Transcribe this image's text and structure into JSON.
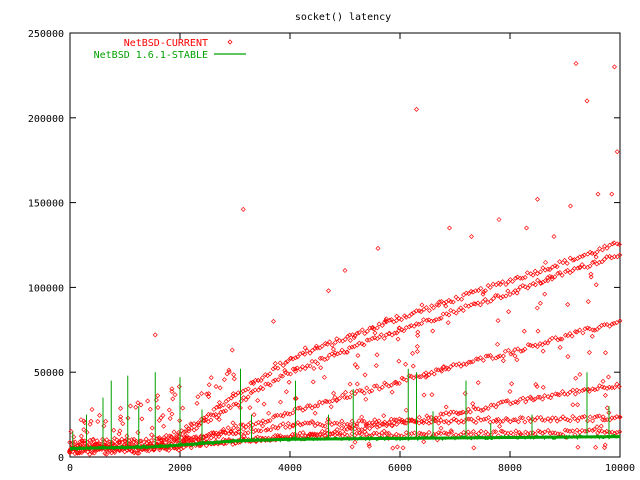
{
  "chart_data": {
    "type": "scatter",
    "title": "socket() latency",
    "xlabel": "",
    "ylabel": "",
    "xlim": [
      0,
      10000
    ],
    "ylim": [
      0,
      250000
    ],
    "x_ticks": [
      0,
      2000,
      4000,
      6000,
      8000,
      10000
    ],
    "y_ticks": [
      0,
      50000,
      100000,
      150000,
      200000,
      250000
    ],
    "grid": false,
    "legend_position": "top-left",
    "series": [
      {
        "name": "NetBSD-CURRENT",
        "style": "points",
        "color": "#ff0000",
        "trend_bands": [
          {
            "x": [
              0,
              1500,
              2000,
              4000,
              6000,
              8000,
              10000
            ],
            "y": [
              8000,
              10000,
              14000,
              58000,
              82000,
              104000,
              126000
            ]
          },
          {
            "x": [
              0,
              1500,
              2000,
              4000,
              6000,
              8000,
              10000
            ],
            "y": [
              6000,
              8000,
              12000,
              50000,
              75000,
              97000,
              120000
            ]
          },
          {
            "x": [
              0,
              1500,
              2000,
              4000,
              6000,
              8000,
              10000
            ],
            "y": [
              5000,
              6000,
              8000,
              26000,
              45000,
              62000,
              80000
            ]
          },
          {
            "x": [
              0,
              1500,
              2000,
              4000,
              6000,
              8000,
              10000
            ],
            "y": [
              4000,
              5000,
              6000,
              12000,
              20000,
              32000,
              43000
            ]
          },
          {
            "x": [
              0,
              1500,
              2000,
              4000,
              6000,
              8000,
              10000
            ],
            "y": [
              4000,
              5000,
              10000,
              19000,
              21000,
              22000,
              23000
            ]
          },
          {
            "x": [
              0,
              1500,
              2000,
              4000,
              6000,
              8000,
              10000
            ],
            "y": [
              3000,
              4000,
              7000,
              12000,
              13000,
              14000,
              15000
            ]
          }
        ],
        "outliers": [
          {
            "x": 3150,
            "y": 146000
          },
          {
            "x": 6300,
            "y": 205000
          },
          {
            "x": 9200,
            "y": 232000
          },
          {
            "x": 9900,
            "y": 230000
          },
          {
            "x": 9950,
            "y": 180000
          },
          {
            "x": 9600,
            "y": 155000
          },
          {
            "x": 9100,
            "y": 148000
          },
          {
            "x": 8500,
            "y": 152000
          },
          {
            "x": 7800,
            "y": 140000
          },
          {
            "x": 7300,
            "y": 130000
          },
          {
            "x": 6900,
            "y": 135000
          },
          {
            "x": 1550,
            "y": 72000
          },
          {
            "x": 2950,
            "y": 63000
          },
          {
            "x": 3700,
            "y": 80000
          },
          {
            "x": 5000,
            "y": 110000
          },
          {
            "x": 4700,
            "y": 98000
          },
          {
            "x": 5600,
            "y": 123000
          },
          {
            "x": 8300,
            "y": 135000
          },
          {
            "x": 9400,
            "y": 210000
          },
          {
            "x": 9850,
            "y": 155000
          },
          {
            "x": 8800,
            "y": 130000
          },
          {
            "x": 400,
            "y": 28000
          },
          {
            "x": 200,
            "y": 22000
          }
        ]
      },
      {
        "name": "NetBSD 1.6.1-STABLE",
        "style": "lines",
        "color": "#00a000",
        "baseline": {
          "x": [
            0,
            1500,
            2000,
            3000,
            4000,
            6000,
            8000,
            10000
          ],
          "y": [
            5000,
            6000,
            7000,
            9500,
            10500,
            11000,
            11500,
            12000
          ]
        },
        "spikes": [
          {
            "x": 50,
            "y": 15000
          },
          {
            "x": 300,
            "y": 25000
          },
          {
            "x": 600,
            "y": 35000
          },
          {
            "x": 750,
            "y": 45000
          },
          {
            "x": 1050,
            "y": 48000
          },
          {
            "x": 1250,
            "y": 30000
          },
          {
            "x": 1550,
            "y": 50000
          },
          {
            "x": 2000,
            "y": 47000
          },
          {
            "x": 2400,
            "y": 28000
          },
          {
            "x": 3100,
            "y": 52000
          },
          {
            "x": 3300,
            "y": 25000
          },
          {
            "x": 4100,
            "y": 45000
          },
          {
            "x": 4700,
            "y": 25000
          },
          {
            "x": 5150,
            "y": 40000
          },
          {
            "x": 6150,
            "y": 52000
          },
          {
            "x": 6300,
            "y": 50000
          },
          {
            "x": 6600,
            "y": 27000
          },
          {
            "x": 7200,
            "y": 45000
          },
          {
            "x": 7650,
            "y": 20000
          },
          {
            "x": 8400,
            "y": 25000
          },
          {
            "x": 9400,
            "y": 50000
          },
          {
            "x": 9800,
            "y": 30000
          }
        ]
      }
    ]
  }
}
